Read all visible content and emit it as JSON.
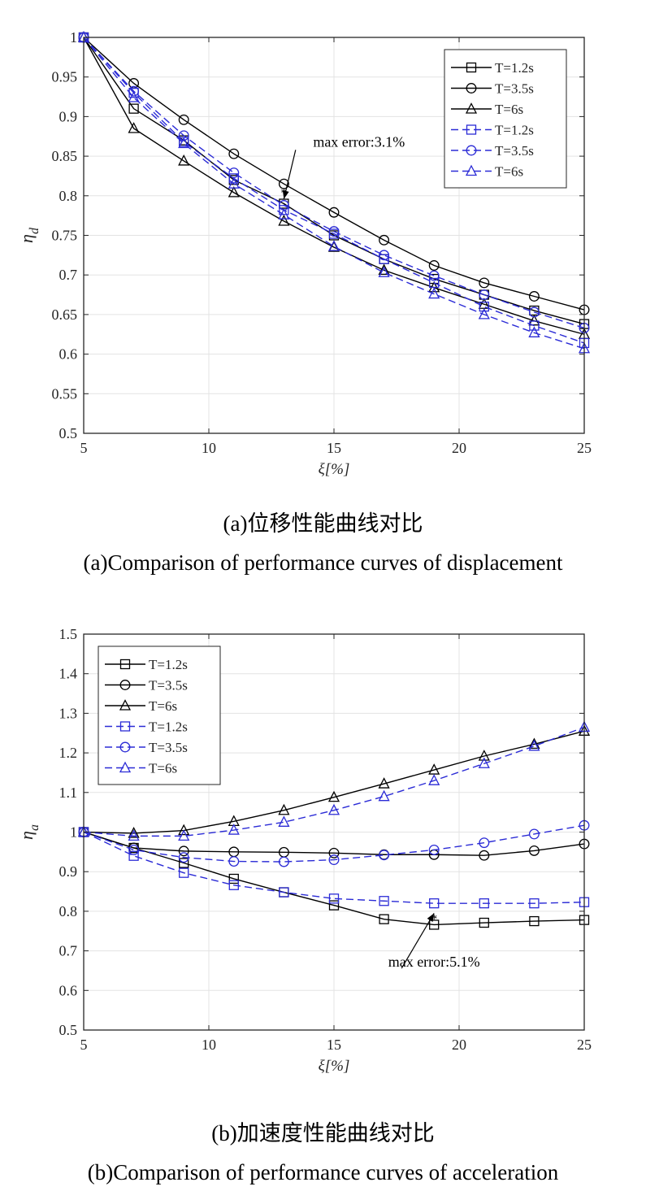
{
  "chart_data": [
    {
      "type": "line",
      "ylabel": "η_d",
      "ylabel_main": "η",
      "ylabel_sub": "d",
      "xlabel": "ξ[%]",
      "xlim": [
        5,
        25
      ],
      "ylim": [
        0.5,
        1
      ],
      "x_ticks": [
        5,
        10,
        15,
        20,
        25
      ],
      "x_tick_labels": [
        "5",
        "10",
        "15",
        "20",
        "25"
      ],
      "y_ticks": [
        0.5,
        0.55,
        0.6,
        0.65,
        0.7,
        0.75,
        0.8,
        0.85,
        0.9,
        0.95,
        1
      ],
      "y_tick_labels": [
        "0.5",
        "0.55",
        "0.6",
        "0.65",
        "0.7",
        "0.75",
        "0.8",
        "0.85",
        "0.9",
        "0.95",
        "1"
      ],
      "grid": true,
      "legend_position": "top-right",
      "x": [
        5,
        7,
        9,
        11,
        13,
        15,
        17,
        19,
        21,
        23,
        25
      ],
      "series": [
        {
          "name": "T=1.2s",
          "marker": "square",
          "style": "solid",
          "color": "#000000",
          "values": [
            1.0,
            0.91,
            0.87,
            0.82,
            0.79,
            0.75,
            0.72,
            0.695,
            0.675,
            0.655,
            0.638
          ]
        },
        {
          "name": "T=3.5s",
          "marker": "circle",
          "style": "solid",
          "color": "#000000",
          "values": [
            1.0,
            0.942,
            0.896,
            0.853,
            0.815,
            0.779,
            0.744,
            0.712,
            0.69,
            0.673,
            0.656
          ]
        },
        {
          "name": "T=6s",
          "marker": "triangle",
          "style": "solid",
          "color": "#000000",
          "values": [
            1.0,
            0.885,
            0.844,
            0.804,
            0.768,
            0.735,
            0.706,
            0.684,
            0.663,
            0.642,
            0.625
          ]
        },
        {
          "name": "T=1.2s",
          "marker": "square",
          "style": "dashed",
          "color": "#2b2bd6",
          "values": [
            1.0,
            0.93,
            0.868,
            0.822,
            0.782,
            0.752,
            0.72,
            0.69,
            0.66,
            0.636,
            0.614
          ]
        },
        {
          "name": "T=3.5s",
          "marker": "circle",
          "style": "dashed",
          "color": "#2b2bd6",
          "values": [
            1.0,
            0.932,
            0.876,
            0.829,
            0.788,
            0.755,
            0.725,
            0.699,
            0.675,
            0.653,
            0.633
          ]
        },
        {
          "name": "T=6s",
          "marker": "triangle",
          "style": "dashed",
          "color": "#2b2bd6",
          "values": [
            1.0,
            0.924,
            0.866,
            0.815,
            0.776,
            0.736,
            0.703,
            0.676,
            0.65,
            0.627,
            0.607
          ]
        }
      ],
      "annotation": {
        "text": "max error:3.1%",
        "x": 13,
        "y": 0.796,
        "label_x": 16,
        "label_y": 0.862
      }
    },
    {
      "type": "line",
      "ylabel": "η_a",
      "ylabel_main": "η",
      "ylabel_sub": "a",
      "xlabel": "ξ[%]",
      "xlim": [
        5,
        25
      ],
      "ylim": [
        0.5,
        1.5
      ],
      "x_ticks": [
        5,
        10,
        15,
        20,
        25
      ],
      "x_tick_labels": [
        "5",
        "10",
        "15",
        "20",
        "25"
      ],
      "y_ticks": [
        0.5,
        0.6,
        0.7,
        0.8,
        0.9,
        1,
        1.1,
        1.2,
        1.3,
        1.4,
        1.5
      ],
      "y_tick_labels": [
        "0.5",
        "0.6",
        "0.7",
        "0.8",
        "0.9",
        "1",
        "1.1",
        "1.2",
        "1.3",
        "1.4",
        "1.5"
      ],
      "grid": true,
      "legend_position": "top-left",
      "x": [
        5,
        7,
        9,
        11,
        13,
        15,
        17,
        19,
        21,
        23,
        25
      ],
      "series": [
        {
          "name": "T=1.2s",
          "marker": "square",
          "style": "solid",
          "color": "#000000",
          "values": [
            1.0,
            0.96,
            0.922,
            0.882,
            0.848,
            0.815,
            0.78,
            0.766,
            0.771,
            0.775,
            0.778
          ]
        },
        {
          "name": "T=3.5s",
          "marker": "circle",
          "style": "solid",
          "color": "#000000",
          "values": [
            1.0,
            0.96,
            0.952,
            0.95,
            0.949,
            0.947,
            0.943,
            0.943,
            0.941,
            0.953,
            0.97
          ]
        },
        {
          "name": "T=6s",
          "marker": "triangle",
          "style": "solid",
          "color": "#000000",
          "values": [
            1.0,
            0.997,
            1.004,
            1.027,
            1.055,
            1.088,
            1.122,
            1.157,
            1.192,
            1.222,
            1.255
          ]
        },
        {
          "name": "T=1.2s",
          "marker": "square",
          "style": "dashed",
          "color": "#2b2bd6",
          "values": [
            1.0,
            0.94,
            0.897,
            0.866,
            0.848,
            0.832,
            0.826,
            0.82,
            0.82,
            0.82,
            0.823
          ]
        },
        {
          "name": "T=3.5s",
          "marker": "circle",
          "style": "dashed",
          "color": "#2b2bd6",
          "values": [
            1.0,
            0.955,
            0.936,
            0.926,
            0.925,
            0.93,
            0.942,
            0.955,
            0.973,
            0.995,
            1.017
          ]
        },
        {
          "name": "T=6s",
          "marker": "triangle",
          "style": "dashed",
          "color": "#2b2bd6",
          "values": [
            1.0,
            0.99,
            0.99,
            1.005,
            1.025,
            1.055,
            1.09,
            1.13,
            1.173,
            1.217,
            1.265
          ]
        }
      ],
      "annotation": {
        "text": "max error:5.1%",
        "x": 19,
        "y": 0.795,
        "label_x": 19,
        "label_y": 0.66
      }
    }
  ],
  "captions": {
    "a_cn": "(a)位移性能曲线对比",
    "a_en": "(a)Comparison of performance curves of displacement",
    "b_cn": "(b)加速度性能曲线对比",
    "b_en": "(b)Comparison of performance curves of acceleration"
  }
}
